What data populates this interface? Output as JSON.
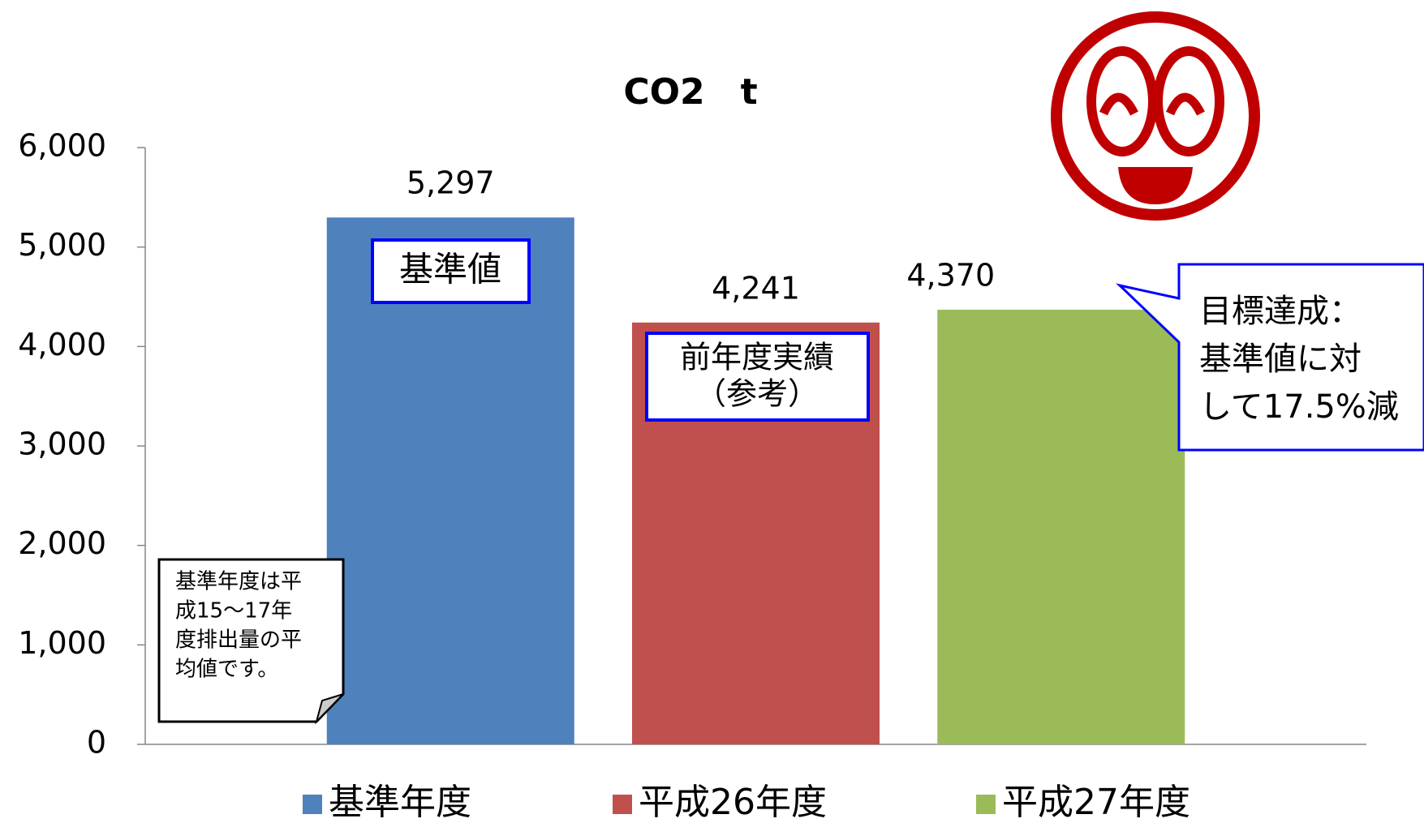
{
  "chart_data": {
    "type": "bar",
    "title": "CO2　t",
    "categories": [
      "基準年度",
      "平成26年度",
      "平成27年度"
    ],
    "values": [
      5297,
      4241,
      4370
    ],
    "value_labels": [
      "5,297",
      "4,241",
      "4,370"
    ],
    "colors": [
      "#4f81bd",
      "#c0504d",
      "#9bbb59"
    ],
    "ylim": [
      0,
      6000
    ],
    "yticks": [
      0,
      {
        "value": 1000,
        "label": "1,000"
      },
      {
        "value": 2000,
        "label": "2,000"
      },
      {
        "value": 3000,
        "label": "3,000"
      },
      {
        "value": 4000,
        "label": "4,000"
      },
      {
        "value": 5000,
        "label": "5,000"
      },
      {
        "value": 6000,
        "label": "6,000"
      }
    ],
    "grid": false,
    "legend": "bottom",
    "annotations": {
      "base_label": "基準値",
      "prev_label": [
        "前年度実績",
        "（参考）"
      ],
      "goal_callout": [
        "目標達成：",
        "基準値に対",
        "して17.5%減"
      ],
      "note": [
        "基準年度は平",
        "成15～17年",
        "度排出量の平",
        "均値です。"
      ]
    }
  }
}
